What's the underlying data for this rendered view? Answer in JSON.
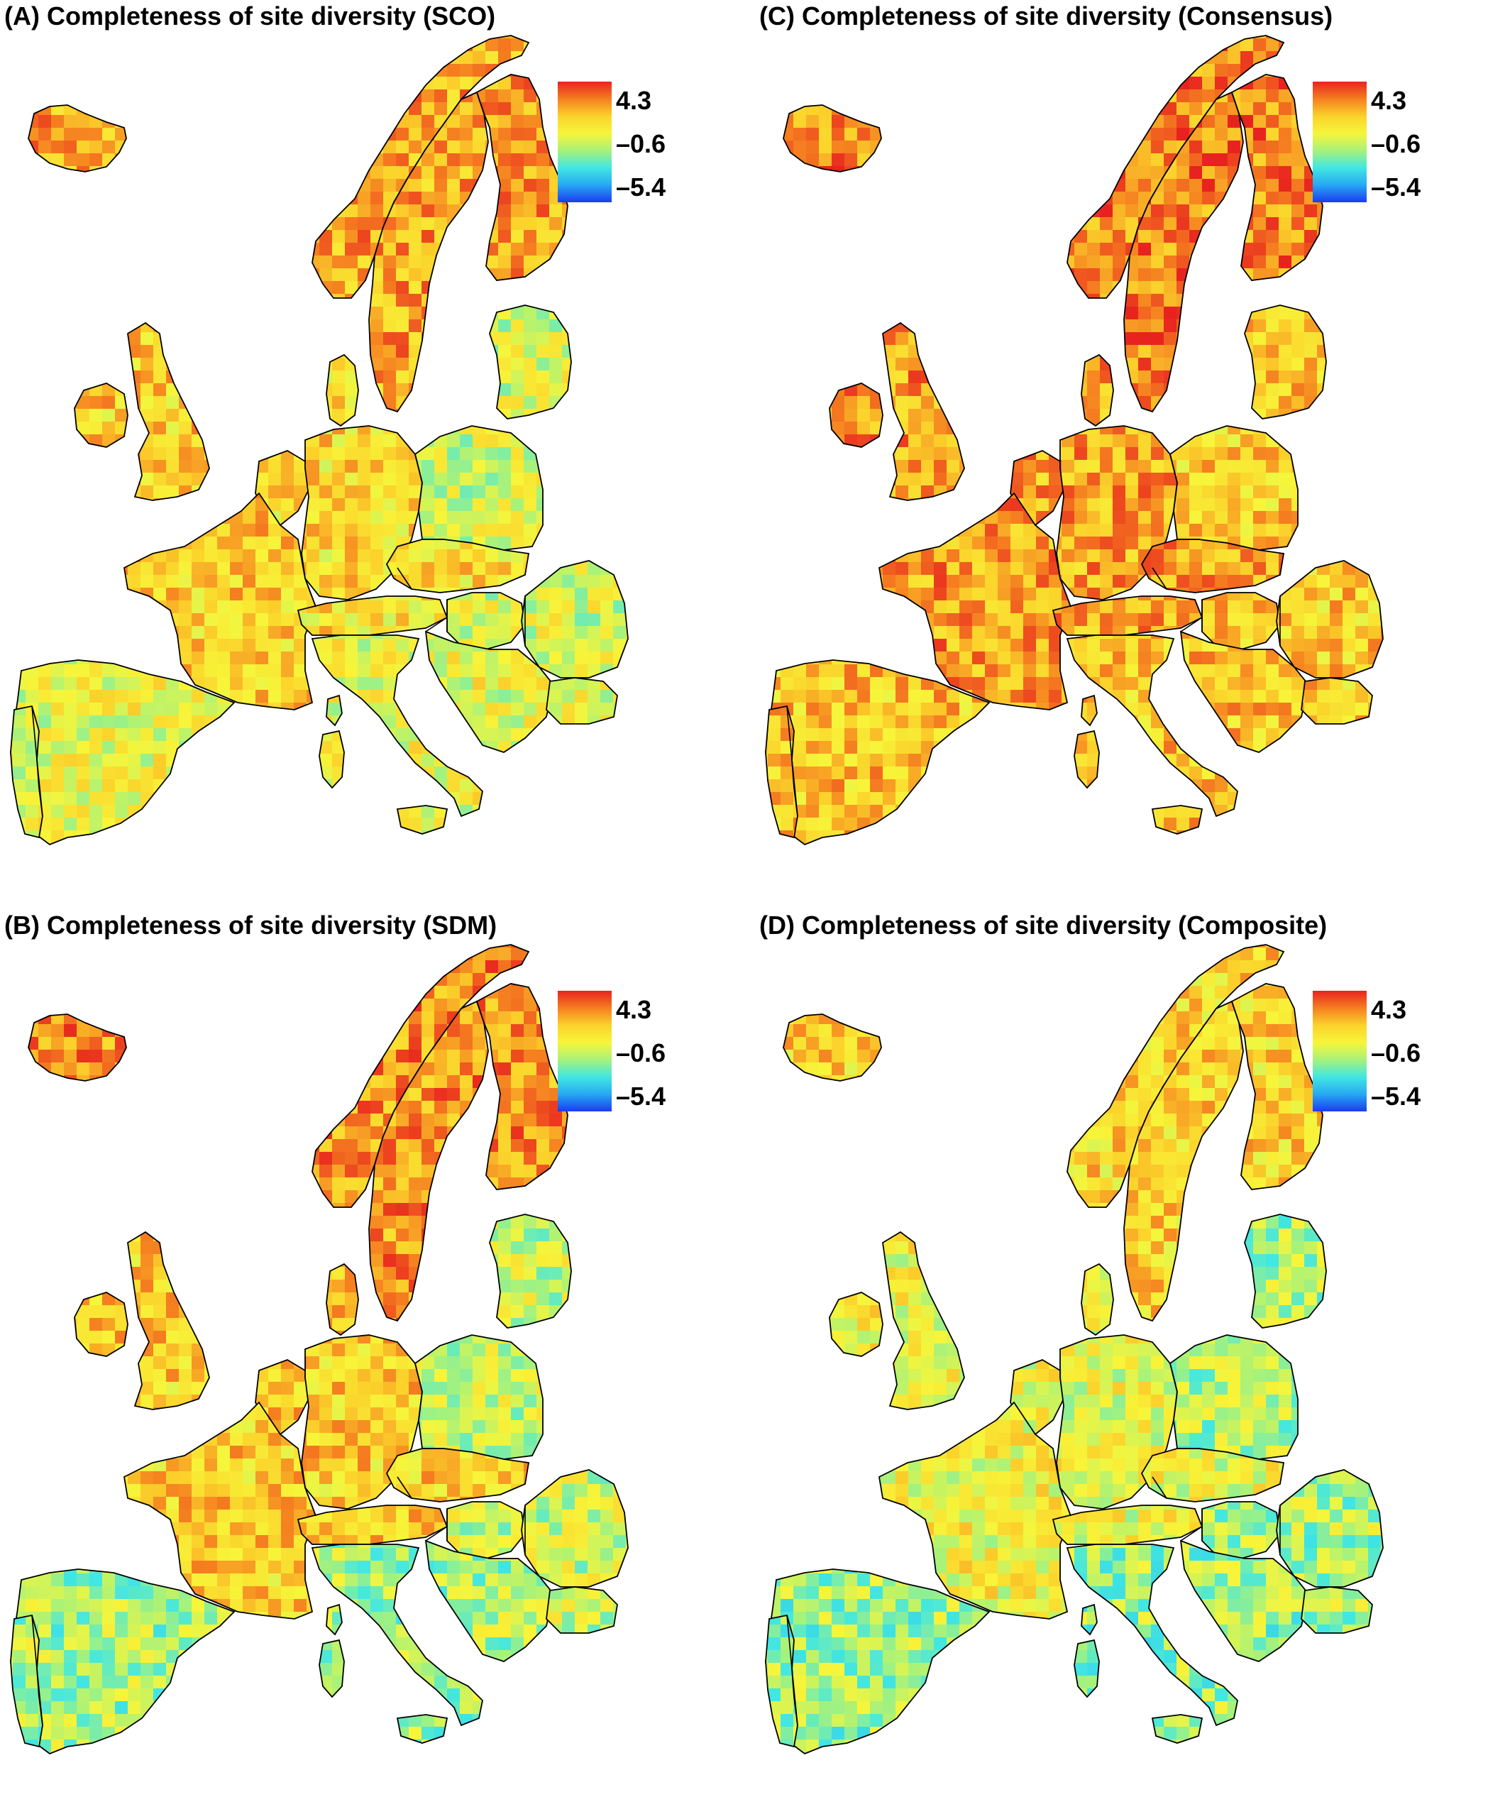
{
  "figure": {
    "panels": [
      {
        "id": "A",
        "title": "(A) Completeness of site diversity (SCO)",
        "pos": "top-left",
        "palette": {
          "north": 0.78,
          "west": 0.7,
          "central": 0.66,
          "east": 0.52,
          "south": 0.56
        }
      },
      {
        "id": "C",
        "title": "(C) Completeness of site diversity (Consensus)",
        "pos": "top-right",
        "palette": {
          "north": 0.86,
          "west": 0.8,
          "central": 0.78,
          "east": 0.7,
          "south": 0.72
        }
      },
      {
        "id": "B",
        "title": "(B) Completeness of site diversity (SDM)",
        "pos": "bottom-left",
        "palette": {
          "north": 0.82,
          "west": 0.7,
          "central": 0.7,
          "east": 0.5,
          "south": 0.44
        }
      },
      {
        "id": "D",
        "title": "(D) Completeness of site diversity (Composite)",
        "pos": "bottom-right",
        "palette": {
          "north": 0.68,
          "west": 0.58,
          "central": 0.56,
          "east": 0.44,
          "south": 0.42
        }
      }
    ],
    "colorbar": {
      "labels": [
        "4.3",
        "–0.6",
        "–5.4"
      ],
      "max": 4.3,
      "mid": -0.6,
      "min": -5.4,
      "colors": [
        "#e8231f",
        "#f57f20",
        "#fbd22b",
        "#f7f53a",
        "#a8f27a",
        "#41e7e2",
        "#27a9f3",
        "#1b3cf0"
      ]
    },
    "land_color": "#e9ee3f",
    "border_color": "#000000"
  }
}
